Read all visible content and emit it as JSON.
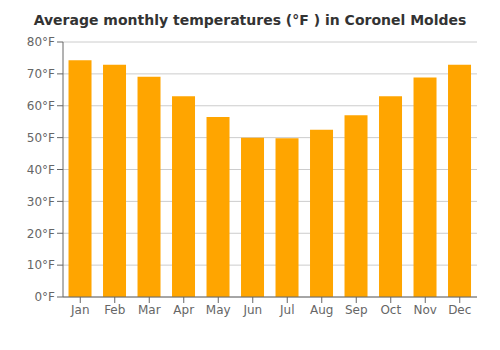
{
  "chart_data": {
    "type": "bar",
    "title": "Average monthly temperatures (°F ) in Coronel Moldes",
    "categories": [
      "Jan",
      "Feb",
      "Mar",
      "Apr",
      "May",
      "Jun",
      "Jul",
      "Aug",
      "Sep",
      "Oct",
      "Nov",
      "Dec"
    ],
    "values": [
      74.3,
      72.9,
      69.1,
      63.0,
      56.5,
      50.0,
      49.8,
      52.5,
      57.0,
      63.0,
      68.9,
      72.9
    ],
    "color": "#FFA500",
    "ylim": [
      0,
      80
    ],
    "yticks": [
      {
        "value": 0,
        "label": "0°F"
      },
      {
        "value": 10,
        "label": "10°F"
      },
      {
        "value": 20,
        "label": "20°F"
      },
      {
        "value": 30,
        "label": "30°F"
      },
      {
        "value": 40,
        "label": "40°F"
      },
      {
        "value": 50,
        "label": "50°F"
      },
      {
        "value": 60,
        "label": "60°F"
      },
      {
        "value": 70,
        "label": "70°F"
      },
      {
        "value": 80,
        "label": "80°F"
      }
    ],
    "grid": true
  }
}
